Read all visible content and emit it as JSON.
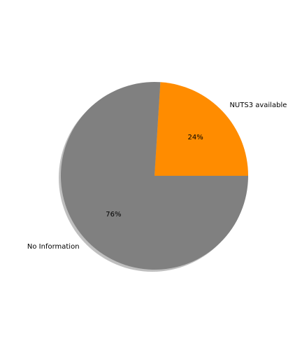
{
  "chart_data": {
    "type": "pie",
    "title": "",
    "start_angle_deg": 0,
    "direction": "counterclockwise",
    "shadow": true,
    "slices": [
      {
        "label": "NUTS3 available",
        "value": 24,
        "pct_label": "24%",
        "color": "#ff8c00"
      },
      {
        "label": "No Information",
        "value": 76,
        "pct_label": "76%",
        "color": "#808080"
      }
    ]
  }
}
